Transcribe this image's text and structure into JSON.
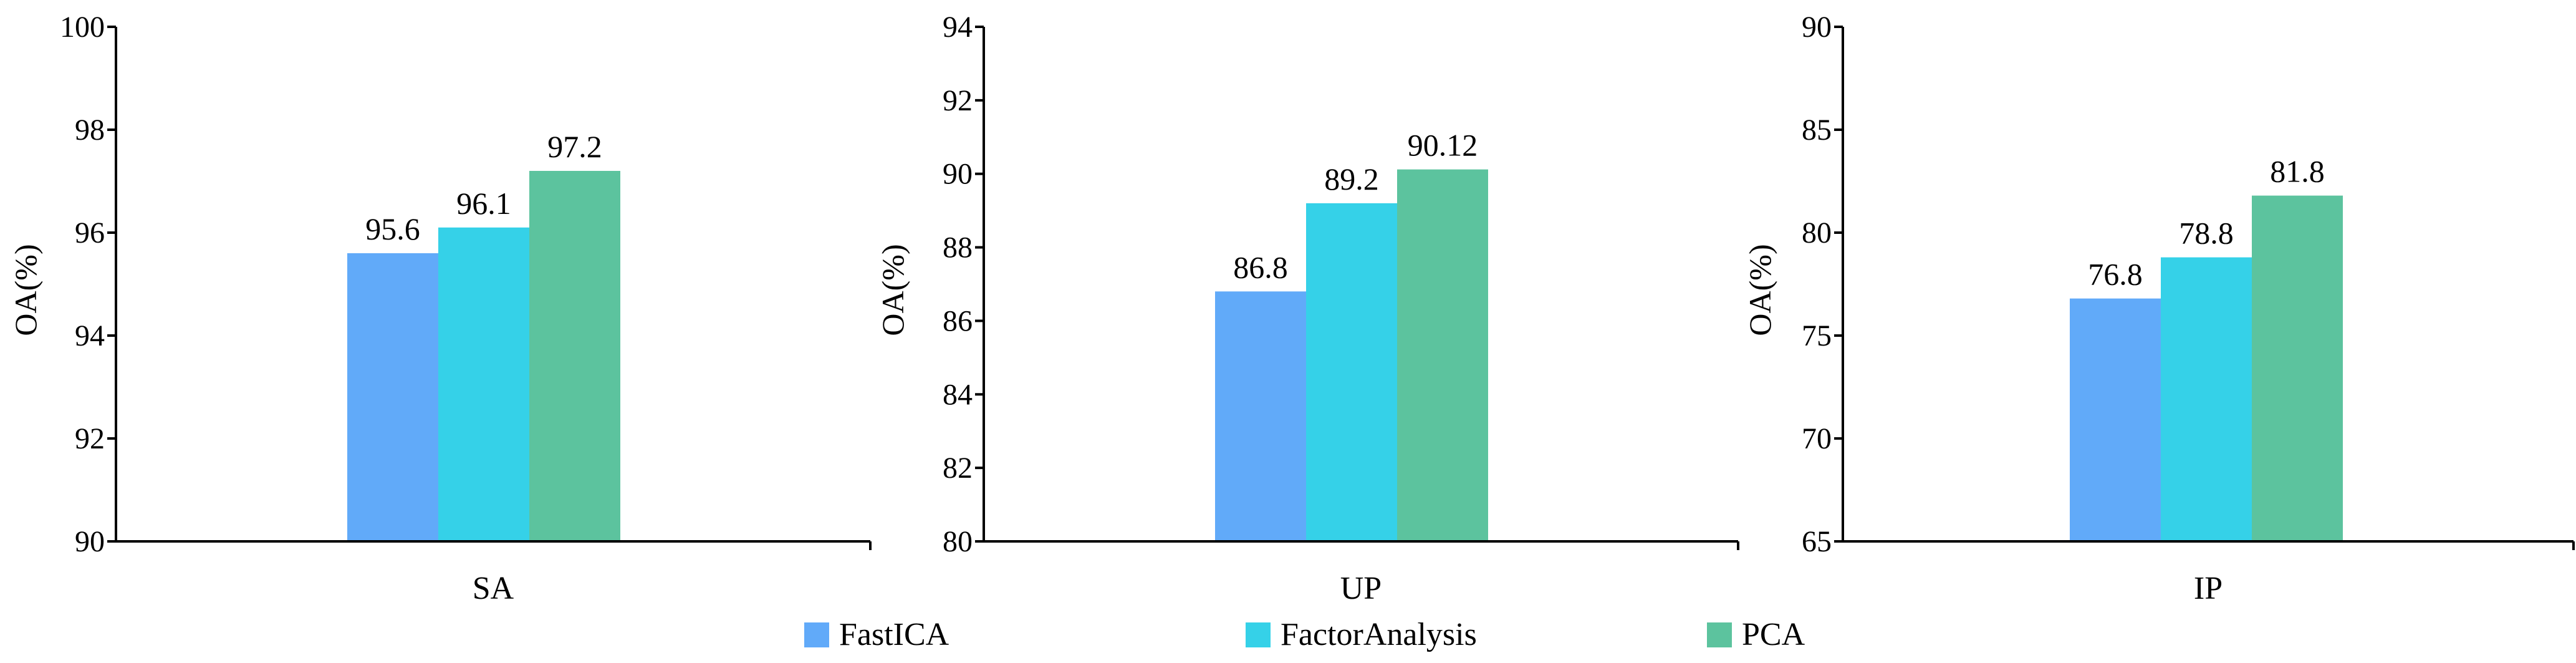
{
  "chart_data": [
    {
      "type": "bar",
      "category": "SA",
      "ylabel": "OA(%)",
      "ylim": [
        90,
        100
      ],
      "yticks": [
        "90",
        "92",
        "94",
        "96",
        "98",
        "100"
      ],
      "series": [
        {
          "name": "FastICA",
          "value": 95.6,
          "label": "95.6"
        },
        {
          "name": "FactorAnalysis",
          "value": 96.1,
          "label": "96.1"
        },
        {
          "name": "PCA",
          "value": 97.2,
          "label": "97.2"
        }
      ]
    },
    {
      "type": "bar",
      "category": "UP",
      "ylabel": "OA(%)",
      "ylim": [
        80,
        94
      ],
      "yticks": [
        "80",
        "82",
        "84",
        "86",
        "88",
        "90",
        "92",
        "94"
      ],
      "series": [
        {
          "name": "FastICA",
          "value": 86.8,
          "label": "86.8"
        },
        {
          "name": "FactorAnalysis",
          "value": 89.2,
          "label": "89.2"
        },
        {
          "name": "PCA",
          "value": 90.12,
          "label": "90.12"
        }
      ]
    },
    {
      "type": "bar",
      "category": "IP",
      "ylabel": "OA(%)",
      "ylim": [
        65,
        90
      ],
      "yticks": [
        "65",
        "70",
        "75",
        "80",
        "85",
        "90"
      ],
      "series": [
        {
          "name": "FastICA",
          "value": 76.8,
          "label": "76.8"
        },
        {
          "name": "FactorAnalysis",
          "value": 78.8,
          "label": "78.8"
        },
        {
          "name": "PCA",
          "value": 81.8,
          "label": "81.8"
        }
      ]
    }
  ],
  "legend": {
    "placement": "bottom-center",
    "items": [
      {
        "name": "FastICA",
        "color": "#61aaf9"
      },
      {
        "name": "FactorAnalysis",
        "color": "#35d1e8"
      },
      {
        "name": "PCA",
        "color": "#5cc39e"
      }
    ]
  }
}
